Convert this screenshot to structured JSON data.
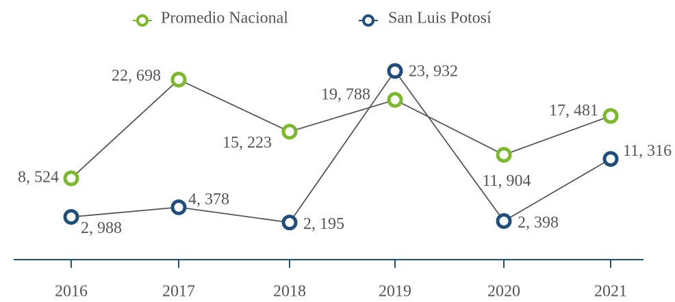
{
  "chart_data": {
    "type": "line",
    "categories": [
      "2016",
      "2017",
      "2018",
      "2019",
      "2020",
      "2021"
    ],
    "series": [
      {
        "name": "Promedio Nacional",
        "color": "#7ab929",
        "values": [
          8524,
          22698,
          15223,
          19788,
          11904,
          17481
        ],
        "value_labels": [
          "8, 524",
          "22, 698",
          "15, 223",
          "19, 788",
          "11, 904",
          "17, 481"
        ]
      },
      {
        "name": "San Luis Potosí",
        "color": "#1d4e7e",
        "values": [
          2988,
          4378,
          2195,
          23932,
          2398,
          11316
        ],
        "value_labels": [
          "2, 988",
          "4, 378",
          "2, 195",
          "23, 932",
          "2, 398",
          "11, 316"
        ]
      }
    ],
    "legend": "top"
  }
}
